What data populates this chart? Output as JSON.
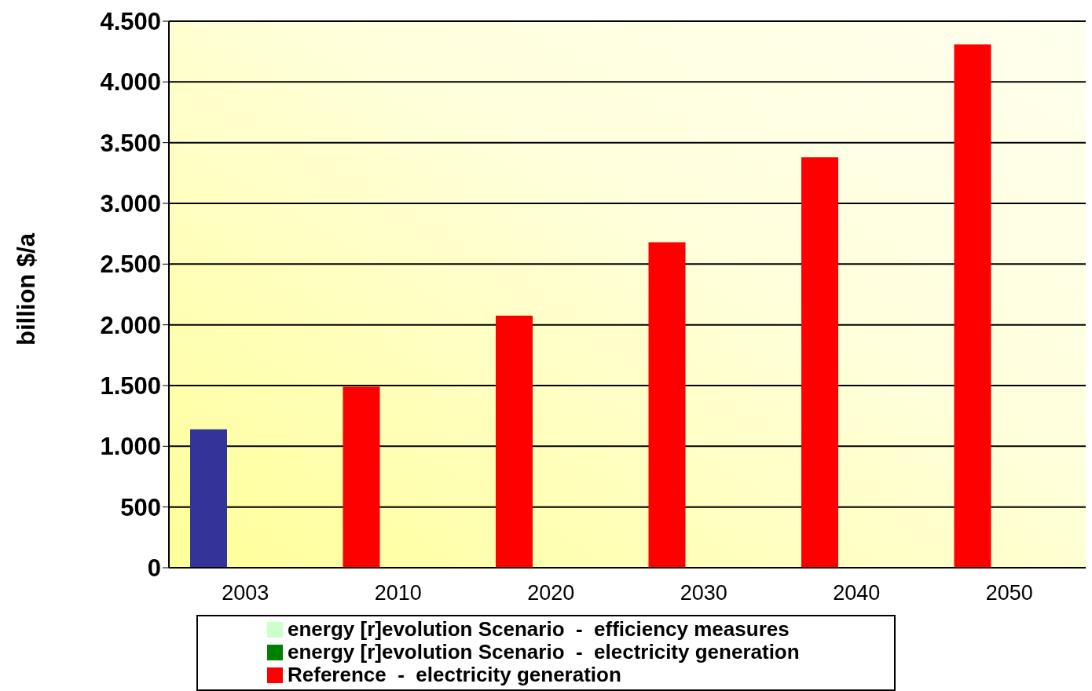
{
  "chart_data": {
    "type": "bar",
    "ylabel": "billion $/a",
    "categories": [
      "2003",
      "2010",
      "2020",
      "2030",
      "2040",
      "2050"
    ],
    "series": [
      {
        "name": "energy [r]evolution Scenario  -  efficiency measures",
        "color": "#ccffcc",
        "values": [
          null,
          null,
          null,
          null,
          null,
          null
        ]
      },
      {
        "name": "energy [r]evolution Scenario  -  electricity generation",
        "color": "#008000",
        "values": [
          null,
          null,
          null,
          null,
          null,
          null
        ]
      },
      {
        "name": "Reference  -  electricity generation",
        "color": "#ff0000",
        "colors": [
          "#333399",
          "#ff0000",
          "#ff0000",
          "#ff0000",
          "#ff0000",
          "#ff0000"
        ],
        "values": [
          1140,
          1490,
          2075,
          2680,
          3380,
          4310
        ]
      }
    ],
    "ylim": [
      0,
      4500
    ],
    "yticks": [
      0,
      500,
      {
        "value": 1000,
        "label": "1.000"
      },
      {
        "value": 1500,
        "label": "1.500"
      },
      {
        "value": 2000,
        "label": "2.000"
      },
      {
        "value": 2500,
        "label": "2.500"
      },
      {
        "value": 3000,
        "label": "3.000"
      },
      {
        "value": 3500,
        "label": "3.500"
      },
      {
        "value": 4000,
        "label": "4.000"
      },
      {
        "value": 4500,
        "label": "4.500"
      }
    ],
    "grid": "y",
    "legend": "bottom"
  }
}
